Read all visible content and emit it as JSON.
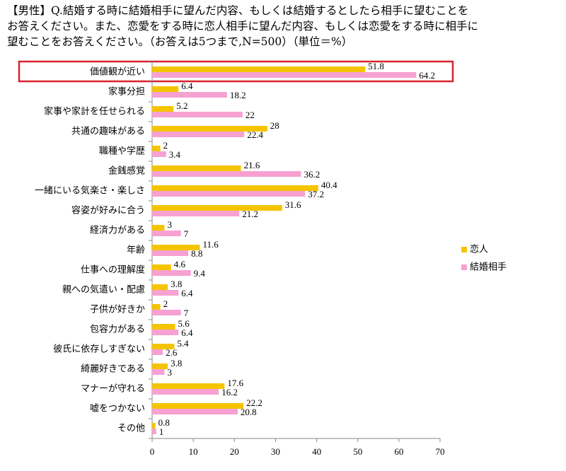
{
  "chart_data": {
    "type": "bar",
    "orientation": "horizontal",
    "title": [
      "【男性】Q.結婚する時に結婚相手に望んだ内容、もしくは結婚するとしたら相手に望むことを",
      "お答えください。また、恋愛をする時に恋人相手に望んだ内容、もしくは恋愛をする時に相手に",
      "望むことをお答えください。（お答えは5つまで,N=500）（単位＝%）"
    ],
    "categories": [
      "価値観が近い",
      "家事分担",
      "家事や家計を任せられる",
      "共通の趣味がある",
      "職種や学歴",
      "金銭感覚",
      "一緒にいる気楽さ・楽しさ",
      "容姿が好みに合う",
      "経済力がある",
      "年齢",
      "仕事への理解度",
      "親への気遣い・配慮",
      "子供が好きか",
      "包容力がある",
      "彼氏に依存しすぎない",
      "綺麗好きである",
      "マナーが守れる",
      "嘘をつかない",
      "その他"
    ],
    "series": [
      {
        "name": "恋人",
        "color": "#f5c400",
        "values": [
          51.8,
          6.4,
          5.2,
          28,
          2,
          21.6,
          40.4,
          31.6,
          3,
          11.6,
          4.6,
          3.8,
          2,
          5.6,
          5.4,
          3.8,
          17.6,
          22.2,
          0.8
        ]
      },
      {
        "name": "結婚相手",
        "color": "#f7a1d2",
        "values": [
          64.2,
          18.2,
          22,
          22.4,
          3.4,
          36.2,
          37.2,
          21.2,
          7,
          8.8,
          9.4,
          6.4,
          7,
          6.4,
          2.6,
          3,
          16.2,
          20.8,
          1
        ]
      }
    ],
    "xlim": [
      0,
      70
    ],
    "xticks": [
      0,
      10,
      20,
      30,
      40,
      50,
      60,
      70
    ],
    "legend": "right"
  }
}
